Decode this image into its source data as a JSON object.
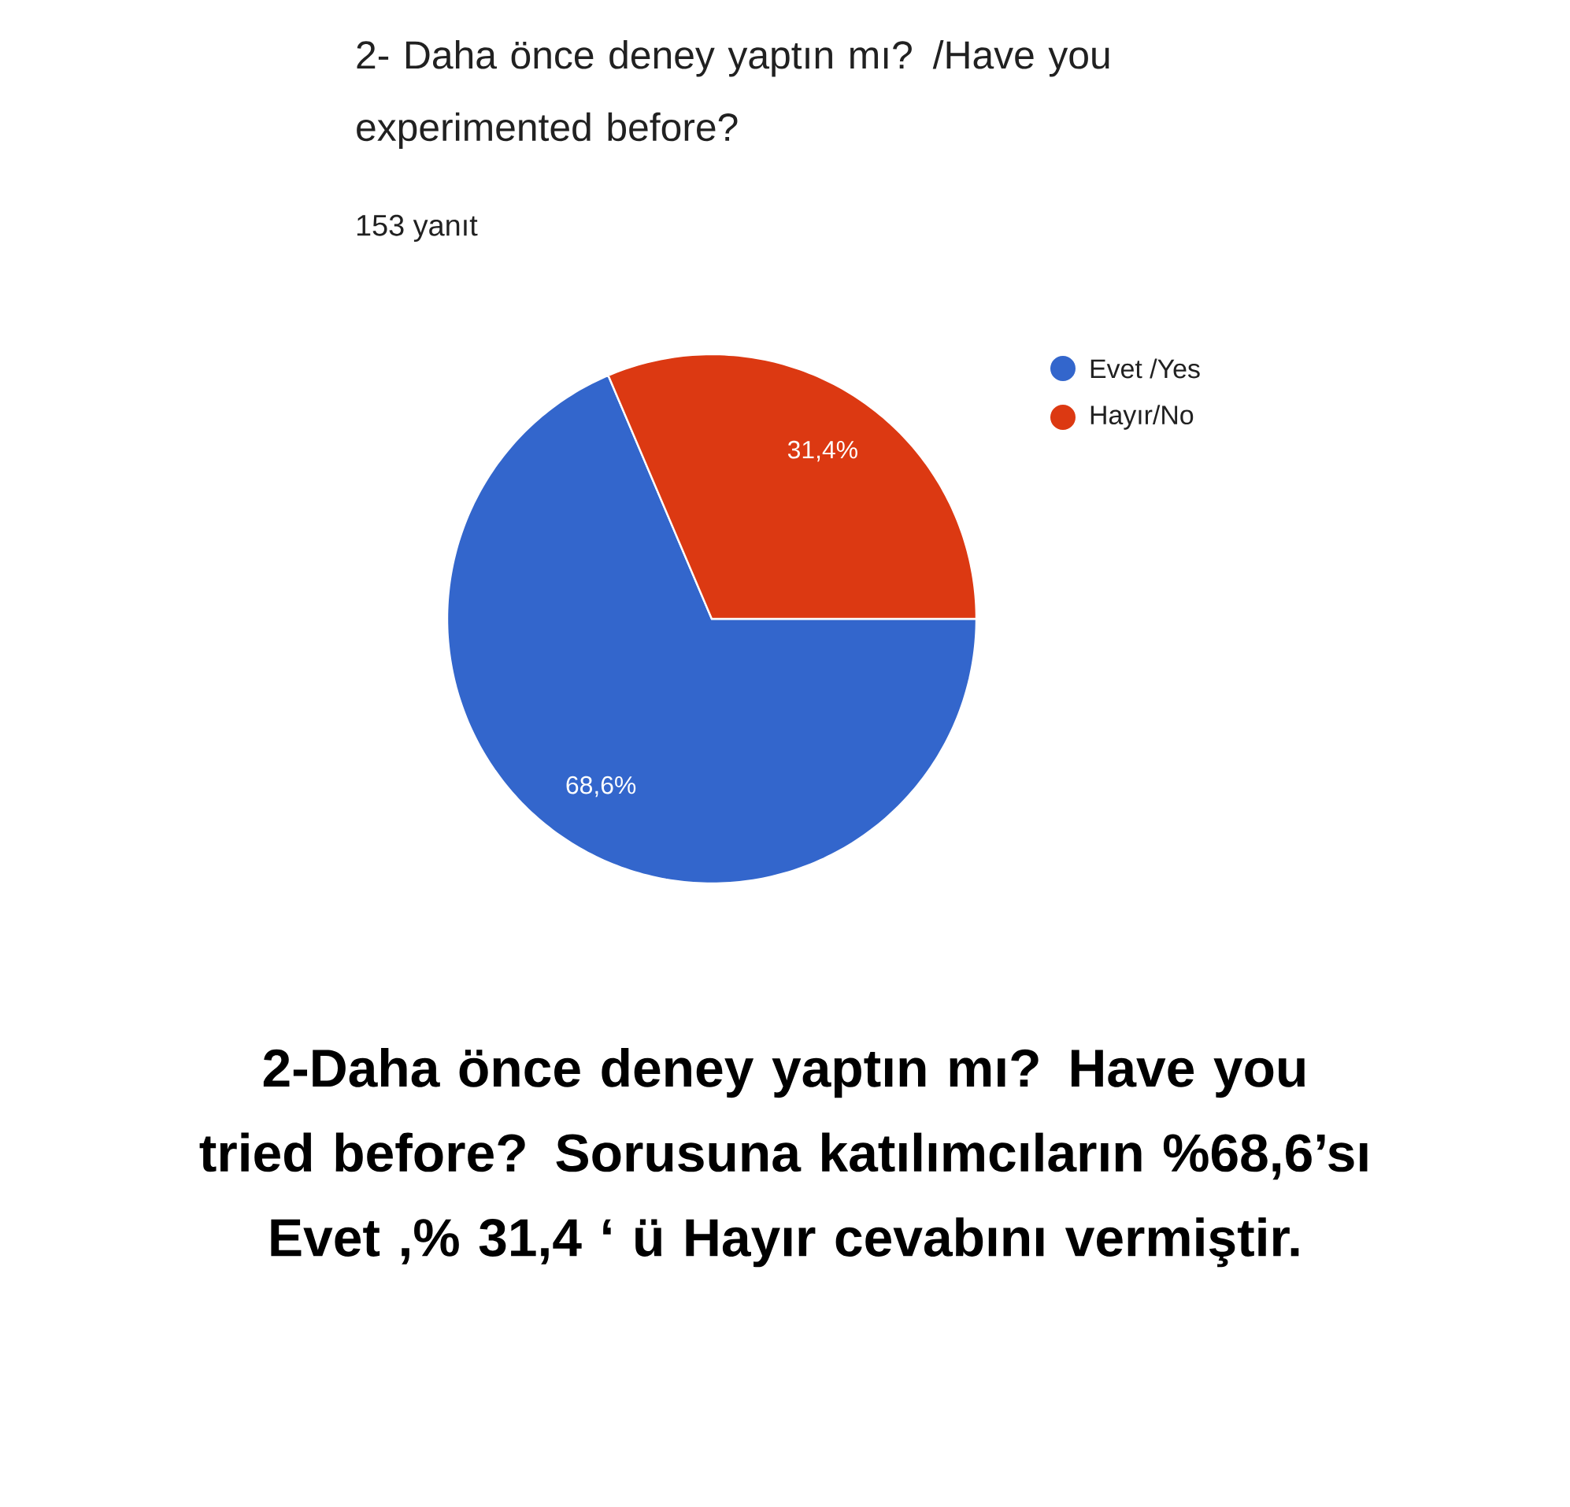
{
  "chart_data": {
    "type": "pie",
    "title": "2- Daha önce deney yaptın mı? /Have you experimented before?",
    "subtitle": "153 yanıt",
    "categories": [
      "Evet /Yes",
      "Hayır/No"
    ],
    "values": [
      68.6,
      31.4
    ],
    "colors": [
      "#3366cc",
      "#dc3912"
    ],
    "value_labels": [
      "68,6%",
      "31,4%"
    ],
    "legend": "top right",
    "annotations": [
      "2-Daha önce deney yaptın mı?  Have you tried before? Sorusuna katılımcıların %68,6’sı Evet ,% 31,4 ‘ ü Hayır cevabını vermiştir."
    ]
  }
}
